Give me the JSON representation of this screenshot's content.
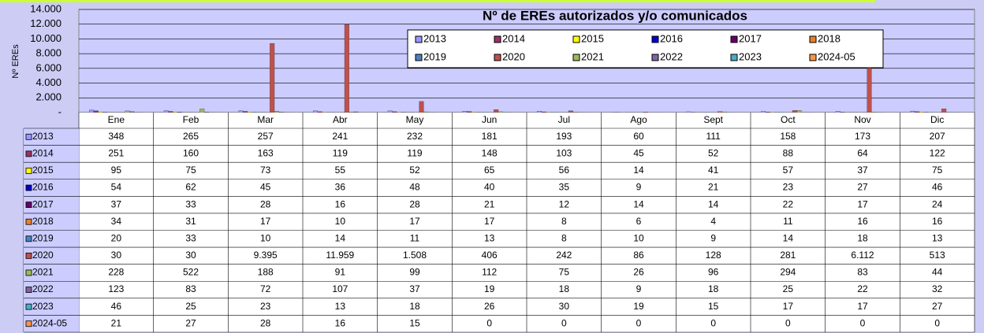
{
  "chart_data": {
    "type": "bar",
    "title": "Nº de EREs autorizados y/o comunicados",
    "y_label": "Nº EREs",
    "categories": [
      "Ene",
      "Feb",
      "Mar",
      "Abr",
      "May",
      "Jun",
      "Jul",
      "Ago",
      "Sept",
      "Oct",
      "Nov",
      "Dic"
    ],
    "ylim": [
      0,
      14000
    ],
    "yticks": [
      {
        "value": 0,
        "label": "-"
      },
      {
        "value": 2000,
        "label": "2.000"
      },
      {
        "value": 4000,
        "label": "4.000"
      },
      {
        "value": 6000,
        "label": "6.000"
      },
      {
        "value": 8000,
        "label": "8.000"
      },
      {
        "value": 10000,
        "label": "10.000"
      },
      {
        "value": 12000,
        "label": "12.000"
      },
      {
        "value": 14000,
        "label": "14.000"
      }
    ],
    "grid": true,
    "series": [
      {
        "name": "2013",
        "color": "#9999ff",
        "values": [
          348,
          265,
          257,
          241,
          232,
          181,
          193,
          60,
          111,
          158,
          173,
          207
        ]
      },
      {
        "name": "2014",
        "color": "#993366",
        "values": [
          251,
          160,
          163,
          119,
          119,
          148,
          103,
          45,
          52,
          88,
          64,
          122
        ]
      },
      {
        "name": "2015",
        "color": "#ffff00",
        "values": [
          95,
          75,
          73,
          55,
          52,
          65,
          56,
          14,
          41,
          57,
          37,
          75
        ]
      },
      {
        "name": "2016",
        "color": "#0000cc",
        "values": [
          54,
          62,
          45,
          36,
          48,
          40,
          35,
          9,
          21,
          23,
          27,
          46
        ]
      },
      {
        "name": "2017",
        "color": "#660066",
        "values": [
          37,
          33,
          28,
          16,
          28,
          21,
          12,
          14,
          14,
          22,
          17,
          24
        ]
      },
      {
        "name": "2018",
        "color": "#e8802a",
        "values": [
          34,
          31,
          17,
          10,
          17,
          17,
          8,
          6,
          4,
          11,
          16,
          16
        ]
      },
      {
        "name": "2019",
        "color": "#4f81bd",
        "values": [
          20,
          33,
          10,
          14,
          11,
          13,
          8,
          10,
          9,
          14,
          18,
          13
        ]
      },
      {
        "name": "2020",
        "color": "#c0504d",
        "values": [
          30,
          30,
          9395,
          11959,
          1508,
          406,
          242,
          86,
          128,
          281,
          6112,
          513
        ],
        "value_labels": [
          "30",
          "30",
          "9.395",
          "11.959",
          "1.508",
          "406",
          "242",
          "86",
          "128",
          "281",
          "6.112",
          "513"
        ]
      },
      {
        "name": "2021",
        "color": "#9bbb59",
        "values": [
          228,
          522,
          188,
          91,
          99,
          112,
          75,
          26,
          96,
          294,
          83,
          44
        ]
      },
      {
        "name": "2022",
        "color": "#8064a2",
        "values": [
          123,
          83,
          72,
          107,
          37,
          19,
          18,
          9,
          18,
          25,
          22,
          32
        ]
      },
      {
        "name": "2023",
        "color": "#4bacc6",
        "values": [
          46,
          25,
          23,
          13,
          18,
          26,
          30,
          19,
          15,
          17,
          17,
          27
        ]
      },
      {
        "name": "2024-05",
        "color": "#f79646",
        "values": [
          21,
          27,
          28,
          16,
          15,
          0,
          0,
          0,
          0,
          0,
          0,
          0
        ]
      }
    ]
  }
}
